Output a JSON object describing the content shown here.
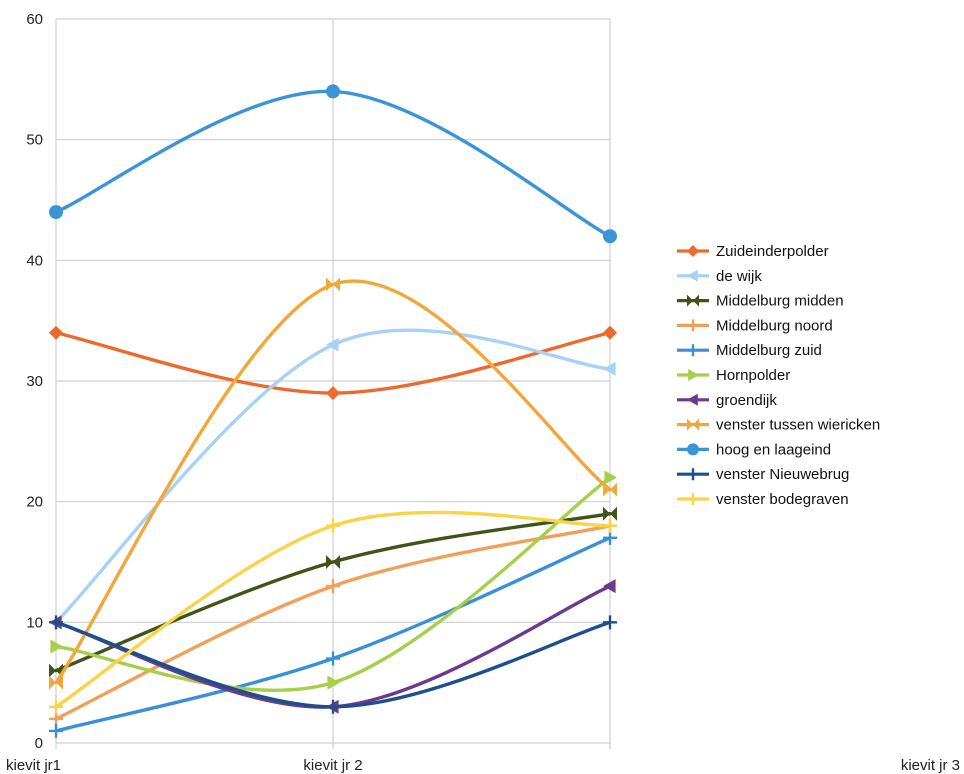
{
  "chart_data": {
    "type": "line",
    "smooth": true,
    "title": "",
    "xlabel": "",
    "ylabel": "",
    "categories": [
      "kievit jr1",
      "kievit jr 2",
      "kievit jr 3"
    ],
    "ylim": [
      0,
      60
    ],
    "yticks": [
      "0",
      "10",
      "20",
      "30",
      "40",
      "50",
      "60"
    ],
    "grid": true,
    "legend_position": "right",
    "series": [
      {
        "name": "Zuideinderpolder",
        "values": [
          34,
          29,
          34
        ],
        "color": "#ED6A2E",
        "marker": "diamond"
      },
      {
        "name": "de wijk",
        "values": [
          10,
          33,
          31
        ],
        "color": "#A9D1F5",
        "marker": "triangle-left"
      },
      {
        "name": "Middelburg midden",
        "values": [
          6,
          15,
          19
        ],
        "color": "#3F5417",
        "marker": "bowtie"
      },
      {
        "name": "Middelburg noord",
        "values": [
          2,
          13,
          18
        ],
        "color": "#F1A05A",
        "marker": "plus"
      },
      {
        "name": "Middelburg zuid",
        "values": [
          1,
          7,
          17
        ],
        "color": "#3A8FD6",
        "marker": "plus"
      },
      {
        "name": "Hornpolder",
        "values": [
          8,
          5,
          22
        ],
        "color": "#A6CF4A",
        "marker": "triangle-right"
      },
      {
        "name": "groendijk",
        "values": [
          10,
          3,
          13
        ],
        "color": "#6A3A8C",
        "marker": "triangle-left"
      },
      {
        "name": "venster tussen wiericken",
        "values": [
          5,
          38,
          21
        ],
        "color": "#F2A73B",
        "marker": "bowtie"
      },
      {
        "name": "hoog en laageind",
        "values": [
          44,
          54,
          42
        ],
        "color": "#3B94D6",
        "marker": "circle"
      },
      {
        "name": "venster Nieuwebrug",
        "values": [
          10,
          3,
          10
        ],
        "color": "#1F4F8A",
        "marker": "plus"
      },
      {
        "name": "venster bodegraven",
        "values": [
          3,
          18,
          18
        ],
        "color": "#FAD346",
        "marker": "plus"
      }
    ]
  }
}
